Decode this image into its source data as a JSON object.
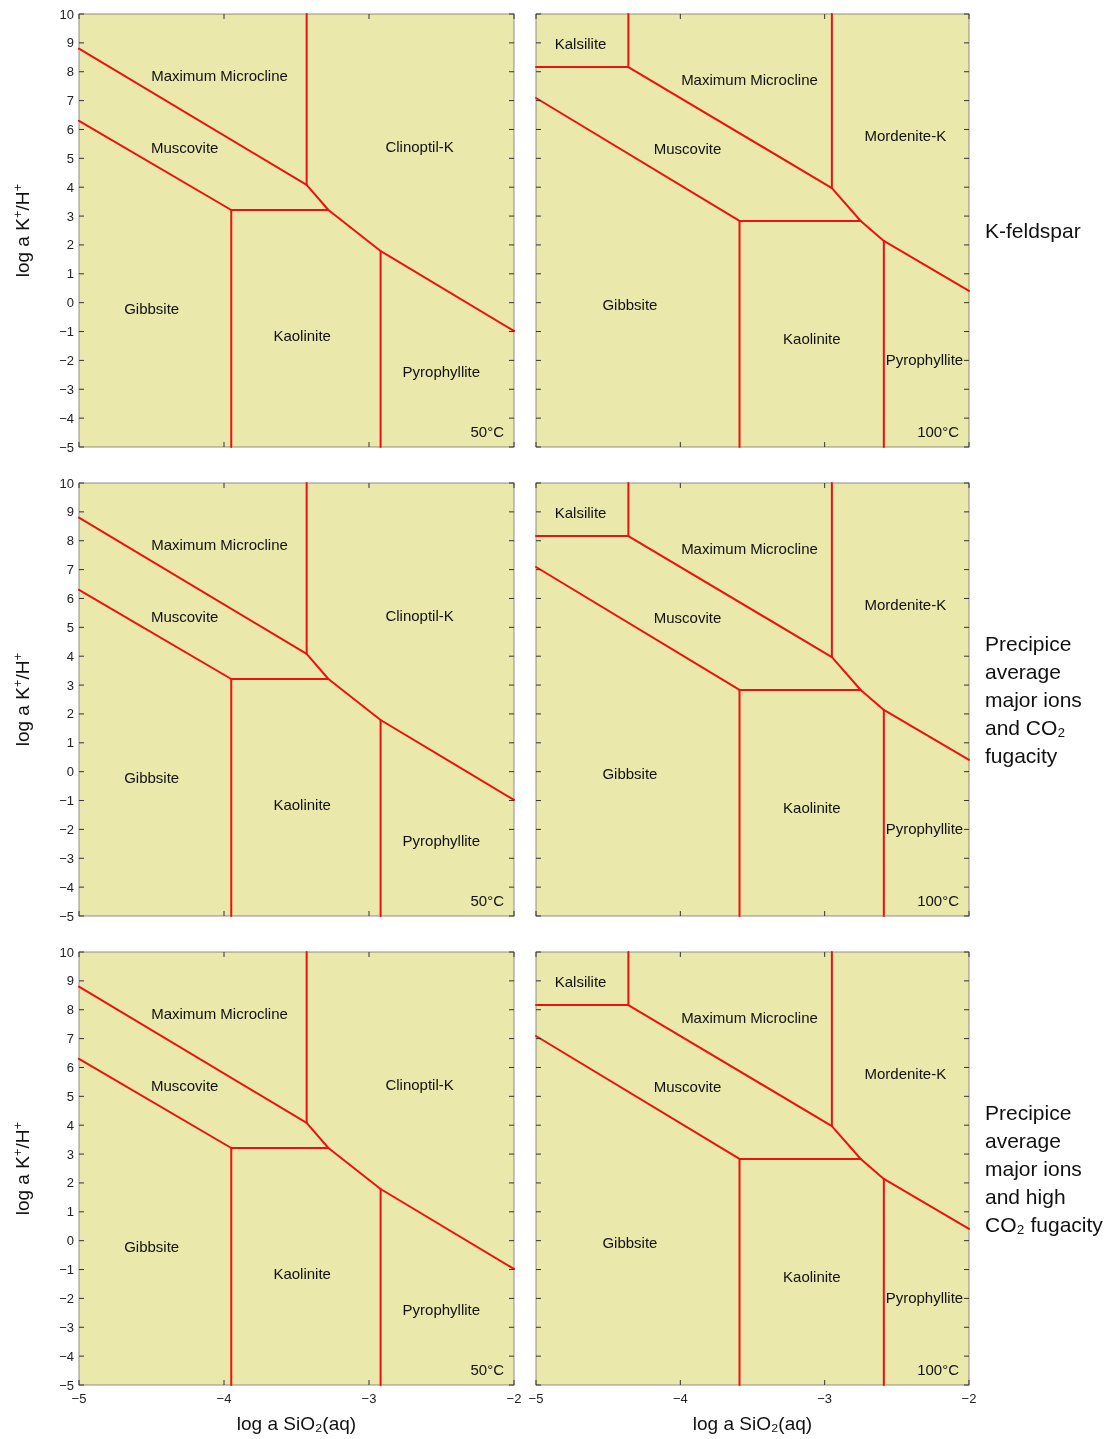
{
  "chart_data": [
    {
      "type": "line",
      "ylabel": "log a K$^{+}$/H$^{+}$",
      "xlim": [
        -5,
        -2
      ],
      "ylim": [
        -5,
        10
      ],
      "xticks": [
        -5,
        -4,
        -3,
        -2
      ],
      "yticks": [
        -5,
        -4,
        -3,
        -2,
        -1,
        0,
        1,
        2,
        3,
        4,
        5,
        6,
        7,
        8,
        9,
        10
      ],
      "tick_labels": "y",
      "series": [
        {
          "color": "#ee1111",
          "x": [
            -5,
            -3.43,
            -3.28,
            -2.92,
            -2
          ],
          "values": [
            8.8,
            4.08,
            3.21,
            1.79,
            -0.98
          ]
        },
        {
          "color": "#ee1111",
          "x": [
            -3.43,
            -3.43
          ],
          "values": [
            10,
            4.08
          ]
        },
        {
          "color": "#ee1111",
          "x": [
            -5,
            -3.95,
            -3.28
          ],
          "values": [
            6.3,
            3.21,
            3.21
          ]
        },
        {
          "color": "#ee1111",
          "x": [
            -3.95,
            -3.95
          ],
          "values": [
            3.21,
            -5
          ]
        },
        {
          "color": "#ee1111",
          "x": [
            -2.92,
            -2.92
          ],
          "values": [
            1.79,
            -5
          ]
        }
      ],
      "annotations": [
        "Maximum Microcline",
        "Muscovite",
        "Clinoptil-K",
        "Gibbsite",
        "Kaolinite",
        "Pyrophyllite",
        "50°C"
      ]
    },
    {
      "type": "line",
      "xlim": [
        -5,
        -2
      ],
      "ylim": [
        -5,
        10
      ],
      "xticks": [
        -5,
        -4,
        -3,
        -2
      ],
      "yticks": [
        -5,
        -4,
        -3,
        -2,
        -1,
        0,
        1,
        2,
        3,
        4,
        5,
        6,
        7,
        8,
        9,
        10
      ],
      "tick_labels": false,
      "series": [
        {
          "color": "#ee1111",
          "x": [
            -5,
            -4.36,
            -2.95,
            -2.75,
            -2.59,
            -2
          ],
          "values": [
            8.16,
            8.16,
            3.97,
            2.83,
            2.14,
            0.41
          ]
        },
        {
          "color": "#ee1111",
          "x": [
            -4.36,
            -4.36
          ],
          "values": [
            10,
            8.16
          ]
        },
        {
          "color": "#ee1111",
          "x": [
            -2.95,
            -2.95
          ],
          "values": [
            10,
            3.97
          ]
        },
        {
          "color": "#ee1111",
          "x": [
            -5,
            -3.59,
            -2.75
          ],
          "values": [
            7.09,
            2.83,
            2.83
          ]
        },
        {
          "color": "#ee1111",
          "x": [
            -3.59,
            -3.59
          ],
          "values": [
            2.83,
            -5
          ]
        },
        {
          "color": "#ee1111",
          "x": [
            -2.59,
            -2.59
          ],
          "values": [
            2.14,
            -5
          ]
        }
      ],
      "annotations": [
        "Kalsilite",
        "Maximum Microcline",
        "Mordenite-K",
        "Muscovite",
        "Gibbsite",
        "Kaolinite",
        "Pyrophyllite",
        "100°C",
        "K-feldspar"
      ]
    },
    {
      "type": "line",
      "ylabel": "log a K$^{+}$/H$^{+}$",
      "xlim": [
        -5,
        -2
      ],
      "ylim": [
        -5,
        10
      ],
      "xticks": [
        -5,
        -4,
        -3,
        -2
      ],
      "yticks": [
        -5,
        -4,
        -3,
        -2,
        -1,
        0,
        1,
        2,
        3,
        4,
        5,
        6,
        7,
        8,
        9,
        10
      ],
      "tick_labels": "y",
      "series": [
        {
          "color": "#ee1111",
          "x": [
            -5,
            -3.43,
            -3.28,
            -2.92,
            -2
          ],
          "values": [
            8.8,
            4.08,
            3.21,
            1.79,
            -0.98
          ]
        },
        {
          "color": "#ee1111",
          "x": [
            -3.43,
            -3.43
          ],
          "values": [
            10,
            4.08
          ]
        },
        {
          "color": "#ee1111",
          "x": [
            -5,
            -3.95,
            -3.28
          ],
          "values": [
            6.3,
            3.21,
            3.21
          ]
        },
        {
          "color": "#ee1111",
          "x": [
            -3.95,
            -3.95
          ],
          "values": [
            3.21,
            -5
          ]
        },
        {
          "color": "#ee1111",
          "x": [
            -2.92,
            -2.92
          ],
          "values": [
            1.79,
            -5
          ]
        }
      ],
      "annotations": [
        "Maximum Microcline",
        "Muscovite",
        "Clinoptil-K",
        "Gibbsite",
        "Kaolinite",
        "Pyrophyllite",
        "50°C"
      ]
    },
    {
      "type": "line",
      "xlim": [
        -5,
        -2
      ],
      "ylim": [
        -5,
        10
      ],
      "xticks": [
        -5,
        -4,
        -3,
        -2
      ],
      "yticks": [
        -5,
        -4,
        -3,
        -2,
        -1,
        0,
        1,
        2,
        3,
        4,
        5,
        6,
        7,
        8,
        9,
        10
      ],
      "tick_labels": false,
      "series": [
        {
          "color": "#ee1111",
          "x": [
            -5,
            -4.36,
            -2.95,
            -2.75,
            -2.59,
            -2
          ],
          "values": [
            8.16,
            8.16,
            3.97,
            2.83,
            2.14,
            0.41
          ]
        },
        {
          "color": "#ee1111",
          "x": [
            -4.36,
            -4.36
          ],
          "values": [
            10,
            8.16
          ]
        },
        {
          "color": "#ee1111",
          "x": [
            -2.95,
            -2.95
          ],
          "values": [
            10,
            3.97
          ]
        },
        {
          "color": "#ee1111",
          "x": [
            -5,
            -3.59,
            -2.75
          ],
          "values": [
            7.09,
            2.83,
            2.83
          ]
        },
        {
          "color": "#ee1111",
          "x": [
            -3.59,
            -3.59
          ],
          "values": [
            2.83,
            -5
          ]
        },
        {
          "color": "#ee1111",
          "x": [
            -2.59,
            -2.59
          ],
          "values": [
            2.14,
            -5
          ]
        }
      ],
      "annotations": [
        "Kalsilite",
        "Maximum Microcline",
        "Mordenite-K",
        "Muscovite",
        "Gibbsite",
        "Kaolinite",
        "Pyrophyllite",
        "100°C",
        "Precipice\naverage\nmajor ions\nand CO₂\nfugacity"
      ]
    },
    {
      "type": "line",
      "ylabel": "log a K$^{+}$/H$^{+}$",
      "xlabel": "log a SiO₂(aq)",
      "xlim": [
        -5,
        -2
      ],
      "ylim": [
        -5,
        10
      ],
      "xticks": [
        -5,
        -4,
        -3,
        -2
      ],
      "yticks": [
        -5,
        -4,
        -3,
        -2,
        -1,
        0,
        1,
        2,
        3,
        4,
        5,
        6,
        7,
        8,
        9,
        10
      ],
      "series": [
        {
          "color": "#ee1111",
          "x": [
            -5,
            -3.43,
            -3.28,
            -2.92,
            -2
          ],
          "values": [
            8.8,
            4.08,
            3.21,
            1.79,
            -0.98
          ]
        },
        {
          "color": "#ee1111",
          "x": [
            -3.43,
            -3.43
          ],
          "values": [
            10,
            4.08
          ]
        },
        {
          "color": "#ee1111",
          "x": [
            -5,
            -3.95,
            -3.28
          ],
          "values": [
            6.3,
            3.21,
            3.21
          ]
        },
        {
          "color": "#ee1111",
          "x": [
            -3.95,
            -3.95
          ],
          "values": [
            3.21,
            -5
          ]
        },
        {
          "color": "#ee1111",
          "x": [
            -2.92,
            -2.92
          ],
          "values": [
            1.79,
            -5
          ]
        }
      ],
      "annotations": [
        "Maximum Microcline",
        "Muscovite",
        "Clinoptil-K",
        "Gibbsite",
        "Kaolinite",
        "Pyrophyllite",
        "50°C"
      ]
    },
    {
      "type": "line",
      "xlabel": "log a SiO₂(aq)",
      "xlim": [
        -5,
        -2
      ],
      "ylim": [
        -5,
        10
      ],
      "xticks": [
        -5,
        -4,
        -3,
        -2
      ],
      "yticks": [
        -5,
        -4,
        -3,
        -2,
        -1,
        0,
        1,
        2,
        3,
        4,
        5,
        6,
        7,
        8,
        9,
        10
      ],
      "tick_labels": "x",
      "series": [
        {
          "color": "#ee1111",
          "x": [
            -5,
            -4.36,
            -2.95,
            -2.75,
            -2.59,
            -2
          ],
          "values": [
            8.16,
            8.16,
            3.97,
            2.83,
            2.14,
            0.41
          ]
        },
        {
          "color": "#ee1111",
          "x": [
            -4.36,
            -4.36
          ],
          "values": [
            10,
            8.16
          ]
        },
        {
          "color": "#ee1111",
          "x": [
            -2.95,
            -2.95
          ],
          "values": [
            10,
            3.97
          ]
        },
        {
          "color": "#ee1111",
          "x": [
            -5,
            -3.59,
            -2.75
          ],
          "values": [
            7.09,
            2.83,
            2.83
          ]
        },
        {
          "color": "#ee1111",
          "x": [
            -3.59,
            -3.59
          ],
          "values": [
            2.83,
            -5
          ]
        },
        {
          "color": "#ee1111",
          "x": [
            -2.59,
            -2.59
          ],
          "values": [
            2.14,
            -5
          ]
        }
      ],
      "annotations": [
        "Kalsilite",
        "Maximum Microcline",
        "Mordenite-K",
        "Muscovite",
        "Gibbsite",
        "Kaolinite",
        "Pyrophyllite",
        "100°C",
        "Precipice\naverage\nmajor ions\nand high\nCO₂ fugacity"
      ]
    }
  ]
}
